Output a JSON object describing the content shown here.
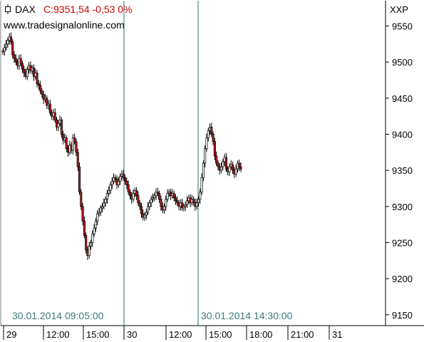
{
  "header": {
    "instrument": "DAX",
    "quote": "C:9351,54 -0,53 0%",
    "website": "www.tradesignalonline.com",
    "symbol_label": "XXP"
  },
  "colors": {
    "up": "#000000",
    "down": "#b81818",
    "marker": "#2f6f7a",
    "axis": "#000000"
  },
  "chart_data": {
    "type": "line",
    "title": "",
    "xlabel": "",
    "ylabel": "",
    "ylim": [
      9135,
      9585
    ],
    "y_ticks": [
      "9550",
      "9500",
      "9450",
      "9400",
      "9350",
      "9300",
      "9250",
      "9200",
      "9150"
    ],
    "x_ticks": [
      "29",
      "12:00",
      "15:00",
      "30",
      "12:00",
      "15:00",
      "18:00",
      "21:00",
      "31"
    ],
    "grid": false,
    "markers": [
      {
        "label": "30.01.2014 09:05:00"
      },
      {
        "label": "30.01.2014 14:30:00"
      }
    ],
    "series": [
      {
        "values": [
          9515,
          9520,
          9525,
          9530,
          9535,
          9528,
          9510,
          9505,
          9500,
          9495,
          9505,
          9498,
          9490,
          9485,
          9480,
          9490,
          9495,
          9488,
          9492,
          9480,
          9485,
          9470,
          9468,
          9460,
          9455,
          9448,
          9450,
          9440,
          9442,
          9430,
          9425,
          9430,
          9420,
          9410,
          9415,
          9420,
          9400,
          9392,
          9395,
          9380,
          9375,
          9385,
          9378,
          9395,
          9390,
          9375,
          9355,
          9320,
          9300,
          9280,
          9260,
          9240,
          9232,
          9245,
          9250,
          9262,
          9270,
          9280,
          9290,
          9292,
          9298,
          9300,
          9305,
          9310,
          9318,
          9322,
          9330,
          9335,
          9340,
          9338,
          9330,
          9335,
          9342,
          9345,
          9340,
          9335,
          9330,
          9320,
          9315,
          9310,
          9318,
          9322,
          9315,
          9305,
          9300,
          9290,
          9285,
          9288,
          9292,
          9300,
          9305,
          9310,
          9312,
          9315,
          9320,
          9318,
          9310,
          9300,
          9295,
          9300,
          9310,
          9318,
          9320,
          9315,
          9318,
          9312,
          9308,
          9305,
          9300,
          9305,
          9298,
          9300,
          9302,
          9308,
          9312,
          9305,
          9310,
          9306,
          9300,
          9305,
          9310,
          9320,
          9340,
          9360,
          9380,
          9395,
          9405,
          9410,
          9400,
          9390,
          9370,
          9360,
          9355,
          9350,
          9355,
          9362,
          9368,
          9352,
          9348,
          9355,
          9358,
          9350,
          9345,
          9352,
          9360,
          9355,
          9351.54
        ]
      }
    ]
  }
}
